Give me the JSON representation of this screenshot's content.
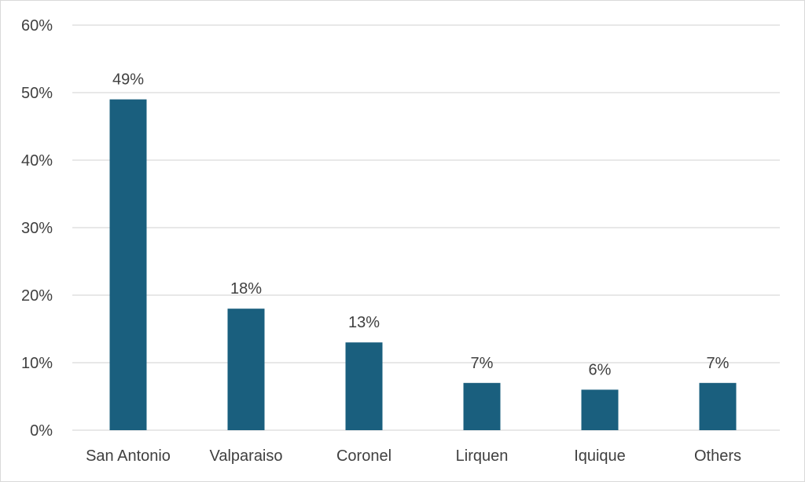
{
  "chart_data": {
    "type": "bar",
    "categories": [
      "San Antonio",
      "Valparaiso",
      "Coronel",
      "Lirquen",
      "Iquique",
      "Others"
    ],
    "values": [
      49,
      18,
      13,
      7,
      6,
      7
    ],
    "data_labels": [
      "49%",
      "18%",
      "13%",
      "7%",
      "6%",
      "7%"
    ],
    "y_ticks": [
      "0%",
      "10%",
      "20%",
      "30%",
      "40%",
      "50%",
      "60%"
    ],
    "ylim": [
      0,
      60
    ],
    "grid": true,
    "legend": "none",
    "bar_color": "#1a5f7e",
    "grid_color": "#d9d9d9"
  }
}
